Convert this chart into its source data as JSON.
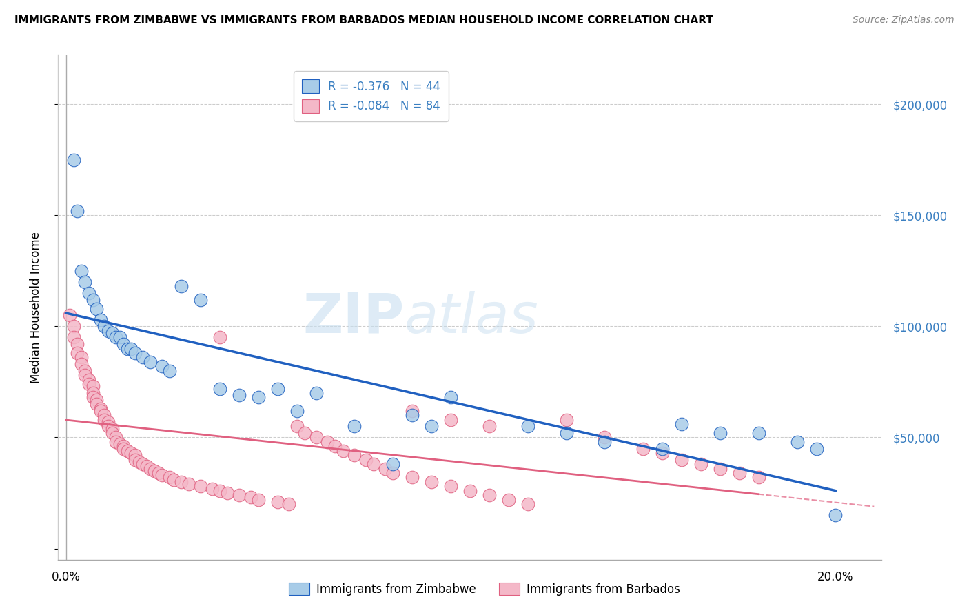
{
  "title": "IMMIGRANTS FROM ZIMBABWE VS IMMIGRANTS FROM BARBADOS MEDIAN HOUSEHOLD INCOME CORRELATION CHART",
  "source": "Source: ZipAtlas.com",
  "ylabel": "Median Household Income",
  "r_zimbabwe": -0.376,
  "n_zimbabwe": 44,
  "r_barbados": -0.084,
  "n_barbados": 84,
  "color_zimbabwe": "#a8cce8",
  "color_barbados": "#f4b8c8",
  "color_zimbabwe_line": "#2060c0",
  "color_barbados_line": "#e06080",
  "watermark_color": "#d0e8f5",
  "yticks": [
    0,
    50000,
    100000,
    150000,
    200000
  ],
  "ytick_labels": [
    "",
    "$50,000",
    "$100,000",
    "$150,000",
    "$200,000"
  ],
  "zim_x": [
    0.002,
    0.003,
    0.004,
    0.005,
    0.006,
    0.007,
    0.008,
    0.009,
    0.01,
    0.011,
    0.012,
    0.013,
    0.014,
    0.015,
    0.016,
    0.017,
    0.018,
    0.02,
    0.022,
    0.025,
    0.027,
    0.03,
    0.035,
    0.04,
    0.045,
    0.05,
    0.055,
    0.06,
    0.065,
    0.075,
    0.085,
    0.09,
    0.095,
    0.1,
    0.12,
    0.13,
    0.14,
    0.155,
    0.16,
    0.17,
    0.18,
    0.19,
    0.195,
    0.2
  ],
  "zim_y": [
    175000,
    152000,
    125000,
    120000,
    115000,
    112000,
    108000,
    103000,
    100000,
    98000,
    97000,
    95000,
    95000,
    92000,
    90000,
    90000,
    88000,
    86000,
    84000,
    82000,
    80000,
    118000,
    112000,
    72000,
    69000,
    68000,
    72000,
    62000,
    70000,
    55000,
    38000,
    60000,
    55000,
    68000,
    55000,
    52000,
    48000,
    45000,
    56000,
    52000,
    52000,
    48000,
    45000,
    15000
  ],
  "bar_x": [
    0.001,
    0.002,
    0.002,
    0.003,
    0.003,
    0.004,
    0.004,
    0.005,
    0.005,
    0.006,
    0.006,
    0.007,
    0.007,
    0.007,
    0.008,
    0.008,
    0.009,
    0.009,
    0.01,
    0.01,
    0.011,
    0.011,
    0.012,
    0.012,
    0.013,
    0.013,
    0.014,
    0.015,
    0.015,
    0.016,
    0.017,
    0.018,
    0.018,
    0.019,
    0.02,
    0.021,
    0.022,
    0.023,
    0.024,
    0.025,
    0.027,
    0.028,
    0.03,
    0.032,
    0.035,
    0.038,
    0.04,
    0.042,
    0.045,
    0.048,
    0.05,
    0.055,
    0.058,
    0.06,
    0.062,
    0.065,
    0.068,
    0.07,
    0.072,
    0.075,
    0.078,
    0.08,
    0.083,
    0.085,
    0.09,
    0.095,
    0.1,
    0.105,
    0.11,
    0.115,
    0.12,
    0.13,
    0.14,
    0.15,
    0.155,
    0.16,
    0.165,
    0.17,
    0.175,
    0.18,
    0.04,
    0.09,
    0.1,
    0.11
  ],
  "bar_y": [
    105000,
    100000,
    95000,
    92000,
    88000,
    86000,
    83000,
    80000,
    78000,
    76000,
    74000,
    73000,
    70000,
    68000,
    67000,
    65000,
    63000,
    62000,
    60000,
    58000,
    57000,
    55000,
    54000,
    52000,
    50000,
    48000,
    47000,
    46000,
    45000,
    44000,
    43000,
    42000,
    40000,
    39000,
    38000,
    37000,
    36000,
    35000,
    34000,
    33000,
    32000,
    31000,
    30000,
    29000,
    28000,
    27000,
    26000,
    25000,
    24000,
    23000,
    22000,
    21000,
    20000,
    55000,
    52000,
    50000,
    48000,
    46000,
    44000,
    42000,
    40000,
    38000,
    36000,
    34000,
    32000,
    30000,
    28000,
    26000,
    24000,
    22000,
    20000,
    58000,
    50000,
    45000,
    43000,
    40000,
    38000,
    36000,
    34000,
    32000,
    95000,
    62000,
    58000,
    55000
  ]
}
